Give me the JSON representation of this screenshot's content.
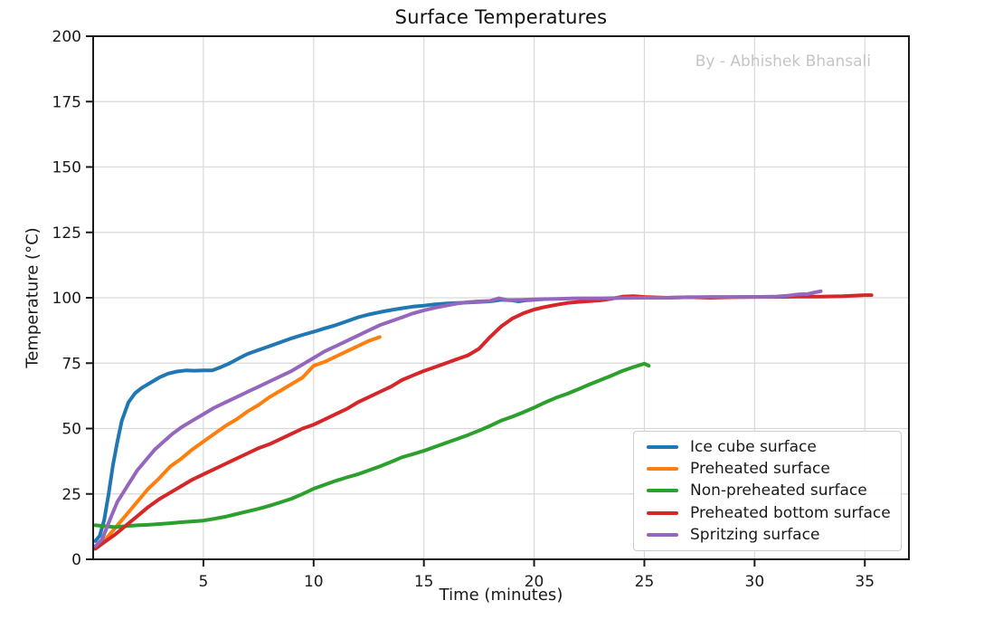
{
  "chart_data": {
    "type": "line",
    "title": "Surface Temperatures",
    "watermark": "By - Abhishek Bhansali",
    "xlabel": "Time (minutes)",
    "ylabel": "Temperature (°C)",
    "xlim": [
      0,
      37
    ],
    "ylim": [
      0,
      200
    ],
    "x_ticks": [
      5,
      10,
      15,
      20,
      25,
      30,
      35
    ],
    "y_ticks": [
      0,
      25,
      50,
      75,
      100,
      125,
      150,
      175,
      200
    ],
    "grid": true,
    "grid_color": "#d9d9d9",
    "spine_color": "#1a1a1a",
    "text_color": "#1a1a1a",
    "legend_position": "lower right inside",
    "series": [
      {
        "name": "Ice cube surface",
        "color": "#1f77b4",
        "points": [
          [
            0.1,
            7
          ],
          [
            0.3,
            9
          ],
          [
            0.5,
            15
          ],
          [
            0.7,
            25
          ],
          [
            0.9,
            36
          ],
          [
            1.1,
            45
          ],
          [
            1.3,
            53
          ],
          [
            1.6,
            60
          ],
          [
            1.9,
            63.5
          ],
          [
            2.2,
            65.5
          ],
          [
            2.6,
            67.5
          ],
          [
            3,
            69.5
          ],
          [
            3.4,
            71
          ],
          [
            3.8,
            71.8
          ],
          [
            4.2,
            72.2
          ],
          [
            4.6,
            72.1
          ],
          [
            5,
            72.2
          ],
          [
            5.4,
            72.2
          ],
          [
            5.8,
            73.5
          ],
          [
            6.2,
            75
          ],
          [
            6.6,
            76.8
          ],
          [
            7,
            78.5
          ],
          [
            7.5,
            80
          ],
          [
            8,
            81.5
          ],
          [
            8.5,
            83
          ],
          [
            9,
            84.5
          ],
          [
            9.5,
            85.8
          ],
          [
            10,
            87
          ],
          [
            10.5,
            88.3
          ],
          [
            11,
            89.5
          ],
          [
            11.5,
            91
          ],
          [
            12,
            92.5
          ],
          [
            12.5,
            93.6
          ],
          [
            13,
            94.5
          ],
          [
            13.5,
            95.3
          ],
          [
            14,
            96
          ],
          [
            14.5,
            96.6
          ],
          [
            15,
            97
          ],
          [
            15.5,
            97.5
          ],
          [
            16,
            97.8
          ],
          [
            16.5,
            98
          ],
          [
            17,
            98.2
          ],
          [
            17.5,
            98.4
          ],
          [
            18,
            98.6
          ],
          [
            18.5,
            99.2
          ],
          [
            19,
            99
          ],
          [
            19.3,
            98.6
          ],
          [
            19.6,
            99
          ],
          [
            20,
            99.2
          ],
          [
            20.5,
            99.5
          ]
        ]
      },
      {
        "name": "Preheated surface",
        "color": "#ff7f0e",
        "points": [
          [
            0.1,
            4.5
          ],
          [
            0.5,
            7
          ],
          [
            1,
            12
          ],
          [
            1.5,
            17
          ],
          [
            2,
            22
          ],
          [
            2.5,
            27
          ],
          [
            3,
            31
          ],
          [
            3.5,
            35.5
          ],
          [
            4,
            38.5
          ],
          [
            4.5,
            42
          ],
          [
            5,
            45
          ],
          [
            5.5,
            48
          ],
          [
            6,
            51
          ],
          [
            6.5,
            53.5
          ],
          [
            7,
            56.5
          ],
          [
            7.5,
            59
          ],
          [
            8,
            62
          ],
          [
            8.5,
            64.5
          ],
          [
            9,
            67
          ],
          [
            9.5,
            69.5
          ],
          [
            10,
            74
          ],
          [
            10.5,
            75.5
          ],
          [
            11,
            77.5
          ],
          [
            11.5,
            79.5
          ],
          [
            12,
            81.5
          ],
          [
            12.5,
            83.5
          ],
          [
            13,
            85
          ]
        ]
      },
      {
        "name": "Non-preheated surface",
        "color": "#2ca02c",
        "points": [
          [
            0.1,
            13
          ],
          [
            0.5,
            12.7
          ],
          [
            1,
            12.3
          ],
          [
            1.5,
            12.7
          ],
          [
            2,
            13
          ],
          [
            2.5,
            13.2
          ],
          [
            3,
            13.5
          ],
          [
            3.5,
            13.8
          ],
          [
            4,
            14.2
          ],
          [
            4.5,
            14.5
          ],
          [
            5,
            14.8
          ],
          [
            5.5,
            15.5
          ],
          [
            6,
            16.3
          ],
          [
            6.5,
            17.3
          ],
          [
            7,
            18.3
          ],
          [
            7.5,
            19.3
          ],
          [
            8,
            20.5
          ],
          [
            8.5,
            21.8
          ],
          [
            9,
            23.2
          ],
          [
            9.5,
            25
          ],
          [
            10,
            27
          ],
          [
            10.5,
            28.5
          ],
          [
            11,
            30
          ],
          [
            11.5,
            31.3
          ],
          [
            12,
            32.5
          ],
          [
            12.5,
            34
          ],
          [
            13,
            35.5
          ],
          [
            13.5,
            37.2
          ],
          [
            14,
            39
          ],
          [
            14.5,
            40.2
          ],
          [
            15,
            41.5
          ],
          [
            15.5,
            43
          ],
          [
            16,
            44.5
          ],
          [
            16.5,
            46
          ],
          [
            17,
            47.5
          ],
          [
            17.5,
            49.2
          ],
          [
            18,
            51
          ],
          [
            18.5,
            53
          ],
          [
            19,
            54.5
          ],
          [
            19.5,
            56.2
          ],
          [
            20,
            58
          ],
          [
            20.5,
            60
          ],
          [
            21,
            61.8
          ],
          [
            21.5,
            63.3
          ],
          [
            22,
            65
          ],
          [
            22.5,
            66.8
          ],
          [
            23,
            68.5
          ],
          [
            23.5,
            70.2
          ],
          [
            24,
            72
          ],
          [
            24.5,
            73.5
          ],
          [
            25,
            74.8
          ],
          [
            25.2,
            74
          ]
        ]
      },
      {
        "name": "Preheated bottom surface",
        "color": "#d62728",
        "points": [
          [
            0.1,
            4
          ],
          [
            0.5,
            6.5
          ],
          [
            1,
            9.5
          ],
          [
            1.5,
            13
          ],
          [
            2,
            16.5
          ],
          [
            2.5,
            20
          ],
          [
            3,
            23
          ],
          [
            3.5,
            25.5
          ],
          [
            4,
            28
          ],
          [
            4.5,
            30.5
          ],
          [
            5,
            32.5
          ],
          [
            5.5,
            34.5
          ],
          [
            6,
            36.5
          ],
          [
            6.5,
            38.5
          ],
          [
            7,
            40.5
          ],
          [
            7.5,
            42.5
          ],
          [
            8,
            44
          ],
          [
            8.5,
            46
          ],
          [
            9,
            48
          ],
          [
            9.5,
            50
          ],
          [
            10,
            51.5
          ],
          [
            10.5,
            53.5
          ],
          [
            11,
            55.5
          ],
          [
            11.5,
            57.5
          ],
          [
            12,
            60
          ],
          [
            12.5,
            62
          ],
          [
            13,
            64
          ],
          [
            13.5,
            66
          ],
          [
            14,
            68.5
          ],
          [
            14.5,
            70.3
          ],
          [
            15,
            72
          ],
          [
            15.5,
            73.5
          ],
          [
            16,
            75
          ],
          [
            16.5,
            76.5
          ],
          [
            17,
            78
          ],
          [
            17.5,
            80.5
          ],
          [
            18,
            85
          ],
          [
            18.5,
            89
          ],
          [
            19,
            92
          ],
          [
            19.5,
            94
          ],
          [
            20,
            95.5
          ],
          [
            20.5,
            96.5
          ],
          [
            21,
            97.3
          ],
          [
            21.5,
            98
          ],
          [
            22,
            98.4
          ],
          [
            22.5,
            98.7
          ],
          [
            23,
            99
          ],
          [
            23.5,
            99.6
          ],
          [
            24,
            100.4
          ],
          [
            24.5,
            100.6
          ],
          [
            25,
            100.3
          ],
          [
            26,
            100
          ],
          [
            27,
            100.2
          ],
          [
            28,
            100
          ],
          [
            29,
            100.2
          ],
          [
            30,
            100.3
          ],
          [
            31,
            100.3
          ],
          [
            32,
            100.4
          ],
          [
            33,
            100.4
          ],
          [
            34,
            100.6
          ],
          [
            35,
            101
          ],
          [
            35.3,
            101
          ]
        ]
      },
      {
        "name": "Spritzing surface",
        "color": "#9467bd",
        "points": [
          [
            0.1,
            5
          ],
          [
            0.4,
            7.5
          ],
          [
            0.8,
            16
          ],
          [
            1.1,
            22
          ],
          [
            1.4,
            26
          ],
          [
            1.7,
            30
          ],
          [
            2,
            34
          ],
          [
            2.4,
            38
          ],
          [
            2.8,
            42
          ],
          [
            3.2,
            45
          ],
          [
            3.6,
            48
          ],
          [
            4,
            50.5
          ],
          [
            4.5,
            53
          ],
          [
            5,
            55.5
          ],
          [
            5.5,
            58
          ],
          [
            6,
            60
          ],
          [
            6.5,
            62
          ],
          [
            7,
            64
          ],
          [
            7.5,
            66
          ],
          [
            8,
            68
          ],
          [
            8.5,
            70
          ],
          [
            9,
            72
          ],
          [
            9.5,
            74.5
          ],
          [
            10,
            77
          ],
          [
            10.5,
            79.5
          ],
          [
            11,
            81.5
          ],
          [
            11.5,
            83.5
          ],
          [
            12,
            85.5
          ],
          [
            12.5,
            87.5
          ],
          [
            13,
            89.5
          ],
          [
            13.5,
            91
          ],
          [
            14,
            92.5
          ],
          [
            14.5,
            94
          ],
          [
            15,
            95.2
          ],
          [
            15.5,
            96.2
          ],
          [
            16,
            97
          ],
          [
            16.5,
            97.8
          ],
          [
            17,
            98.3
          ],
          [
            17.5,
            98.6
          ],
          [
            18,
            98.8
          ],
          [
            18.4,
            99.8
          ],
          [
            18.8,
            99.1
          ],
          [
            19.5,
            99.2
          ],
          [
            20,
            99.4
          ],
          [
            21,
            99.6
          ],
          [
            22,
            99.8
          ],
          [
            23,
            99.8
          ],
          [
            24,
            99.9
          ],
          [
            25,
            100
          ],
          [
            26,
            100
          ],
          [
            27,
            100.2
          ],
          [
            28,
            100.3
          ],
          [
            29,
            100.3
          ],
          [
            30,
            100.3
          ],
          [
            31,
            100.5
          ],
          [
            31.5,
            100.8
          ],
          [
            32,
            101.3
          ],
          [
            32.4,
            101.4
          ],
          [
            32.7,
            102
          ],
          [
            33,
            102.5
          ]
        ]
      }
    ]
  }
}
